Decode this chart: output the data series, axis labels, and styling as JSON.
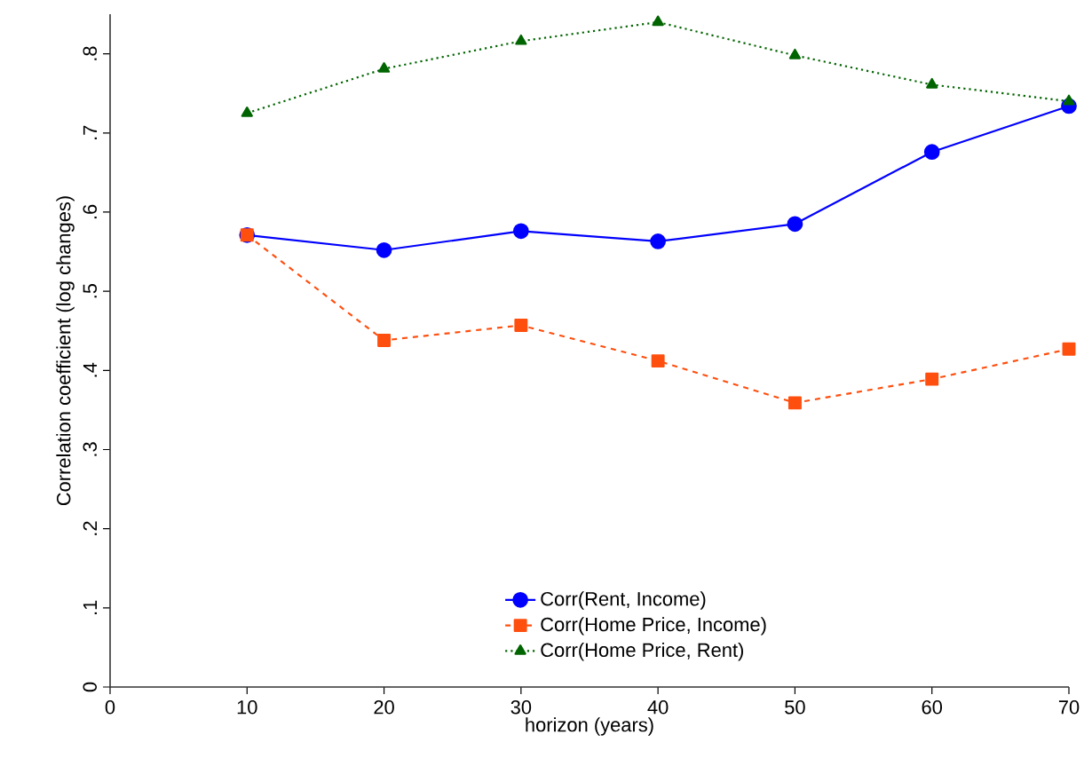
{
  "chart_data": {
    "type": "line",
    "xlabel": "horizon (years)",
    "ylabel": "Correlation coefficient (log changes)",
    "x": [
      10,
      20,
      30,
      40,
      50,
      60,
      70
    ],
    "xlim": [
      0,
      70
    ],
    "xticks": [
      0,
      10,
      20,
      30,
      40,
      50,
      60,
      70
    ],
    "ylim": [
      0,
      0.85
    ],
    "yticks": [
      {
        "value": 0,
        "label": "0"
      },
      {
        "value": 0.1,
        "label": ".1"
      },
      {
        "value": 0.2,
        "label": ".2"
      },
      {
        "value": 0.3,
        "label": ".3"
      },
      {
        "value": 0.4,
        "label": ".4"
      },
      {
        "value": 0.5,
        "label": ".5"
      },
      {
        "value": 0.6,
        "label": ".6"
      },
      {
        "value": 0.7,
        "label": ".7"
      },
      {
        "value": 0.8,
        "label": ".8"
      }
    ],
    "grid": false,
    "legend": "bottom",
    "series": [
      {
        "name": "Corr(Rent, Income)",
        "color": "#0000ff",
        "marker": "circle",
        "line_style": "solid",
        "values": [
          0.571,
          0.552,
          0.576,
          0.563,
          0.585,
          0.676,
          0.734
        ]
      },
      {
        "name": "Corr(Home Price, Income)",
        "color": "#ff4f0f",
        "marker": "square",
        "line_style": "dashed",
        "values": [
          0.571,
          0.438,
          0.457,
          0.412,
          0.359,
          0.389,
          0.427
        ]
      },
      {
        "name": "Corr(Home Price, Rent)",
        "color": "#006400",
        "marker": "triangle",
        "line_style": "dotted",
        "values": [
          0.725,
          0.781,
          0.816,
          0.84,
          0.798,
          0.761,
          0.74
        ]
      }
    ]
  }
}
